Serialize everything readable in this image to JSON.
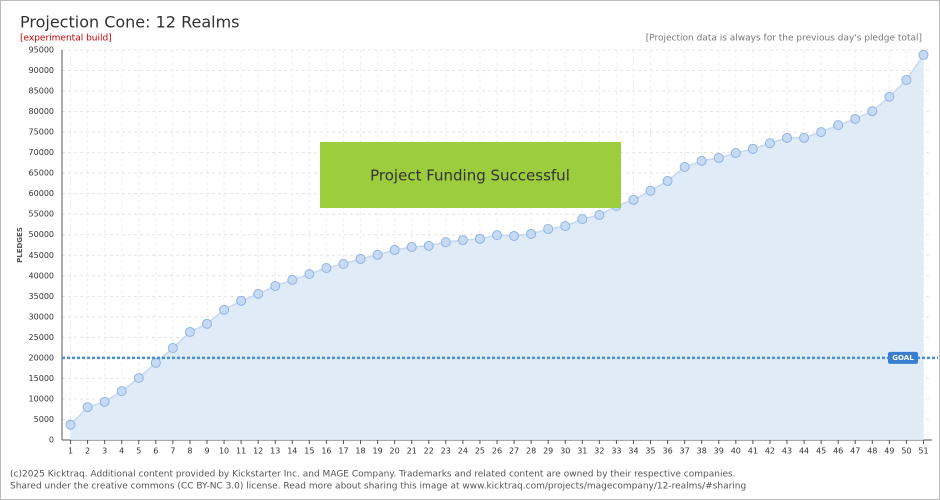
{
  "chart_data": {
    "type": "area",
    "title": "Projection Cone: 12 Realms",
    "subtitle": "[experimental build]",
    "note": "[Projection data is always for the previous day's pledge total]",
    "y_label": "PLEDGES",
    "banner": "Project Funding Successful",
    "footer": [
      "(c)2025 Kicktraq. Additional content provided by Kickstarter Inc. and MAGE Company. Trademarks and related content are owned by their respective companies.",
      "Shared under the creative commons (CC BY-NC 3.0) license. Read more about sharing this image at www.kicktraq.com/projects/magecompany/12-realms/#sharing"
    ],
    "goal": {
      "value": 20000,
      "label": "GOAL"
    },
    "categories": [
      "1",
      "2",
      "3",
      "4",
      "5",
      "6",
      "7",
      "8",
      "9",
      "10",
      "11",
      "12",
      "13",
      "14",
      "15",
      "16",
      "17",
      "18",
      "19",
      "20",
      "21",
      "22",
      "23",
      "24",
      "25",
      "26",
      "27",
      "28",
      "29",
      "30",
      "31",
      "32",
      "33",
      "34",
      "35",
      "36",
      "37",
      "38",
      "39",
      "40",
      "41",
      "42",
      "43",
      "44",
      "45",
      "46",
      "47",
      "48",
      "49",
      "50",
      "51"
    ],
    "values": [
      3700,
      8000,
      9300,
      11900,
      15100,
      18800,
      22400,
      26300,
      28300,
      31700,
      33900,
      35600,
      37500,
      39000,
      40400,
      41900,
      42900,
      44100,
      45100,
      46300,
      47000,
      47300,
      48200,
      48700,
      49000,
      49900,
      49700,
      50200,
      51400,
      52100,
      53800,
      54800,
      57000,
      58500,
      60700,
      63100,
      66500,
      68000,
      68700,
      69900,
      70900,
      72300,
      73600,
      73600,
      75000,
      76700,
      78200,
      80100,
      83600,
      87700,
      93800
    ],
    "color": "#8fb4e3",
    "ylim": [
      0,
      95000
    ],
    "yticks": [
      0,
      5000,
      10000,
      15000,
      20000,
      25000,
      30000,
      35000,
      40000,
      45000,
      50000,
      55000,
      60000,
      65000,
      70000,
      75000,
      80000,
      85000,
      90000,
      95000
    ],
    "grid": true
  }
}
